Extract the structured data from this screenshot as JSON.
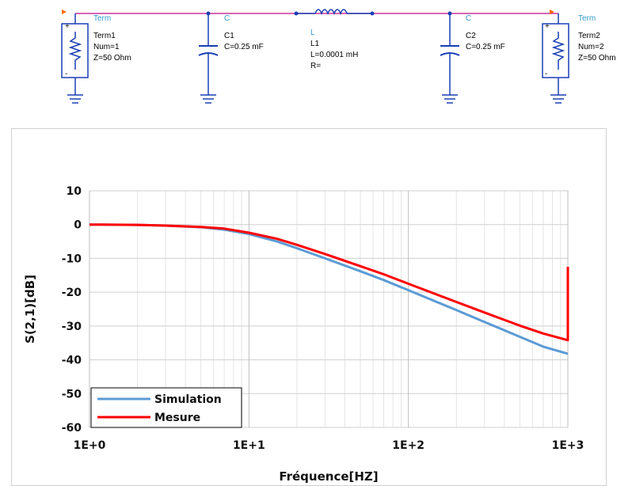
{
  "schematic": {
    "term1": {
      "type": "Term",
      "name": "Term1",
      "num": "Num=1",
      "z": "Z=50 Ohm"
    },
    "c1": {
      "type": "C",
      "name": "C1",
      "value": "C=0.25 mF"
    },
    "l1": {
      "type": "L",
      "name": "L1",
      "value": "L=0.0001 mH",
      "r": "R="
    },
    "c2": {
      "type": "C",
      "name": "C2",
      "value": "C=0.25 mF"
    },
    "term2": {
      "type": "Term",
      "name": "Term2",
      "num": "Num=2",
      "z": "Z=50 Ohm"
    },
    "colors": {
      "wire": "#cc3399",
      "part": "#1a3fb5",
      "label": "#000000",
      "typelabel": "#3399cc"
    }
  },
  "chart_data": {
    "type": "line",
    "xscale": "log",
    "xlim": [
      1,
      1000
    ],
    "ylim": [
      -60,
      10
    ],
    "xticks": [
      "1E+0",
      "1E+1",
      "1E+2",
      "1E+3"
    ],
    "yticks": [
      "10",
      "0",
      "-10",
      "-20",
      "-30",
      "-40",
      "-50",
      "-60"
    ],
    "xlabel": "Fréquence[HZ]",
    "ylabel": "S(2,1)[dB]",
    "grid": true,
    "legend": "bottom-left",
    "series": [
      {
        "name": "Simulation",
        "color": "#5b9bd5",
        "x": [
          1,
          2,
          3,
          5,
          7,
          10,
          15,
          20,
          30,
          50,
          70,
          100,
          200,
          300,
          500,
          700,
          1000
        ],
        "y": [
          0,
          -0.1,
          -0.3,
          -0.8,
          -1.5,
          -2.8,
          -5.0,
          -7.0,
          -10.0,
          -13.8,
          -16.4,
          -19.4,
          -25.3,
          -28.8,
          -33.2,
          -36.1,
          -38.2
        ]
      },
      {
        "name": "Mesure",
        "color": "#ff0000",
        "x": [
          1,
          2,
          3,
          5,
          7,
          10,
          15,
          20,
          30,
          50,
          70,
          100,
          200,
          300,
          500,
          700,
          1000,
          1000
        ],
        "y": [
          0,
          -0.1,
          -0.3,
          -0.7,
          -1.2,
          -2.4,
          -4.2,
          -6.0,
          -8.7,
          -12.3,
          -14.7,
          -17.5,
          -22.9,
          -26.0,
          -29.9,
          -32.2,
          -34.2,
          -12.5
        ]
      }
    ]
  }
}
